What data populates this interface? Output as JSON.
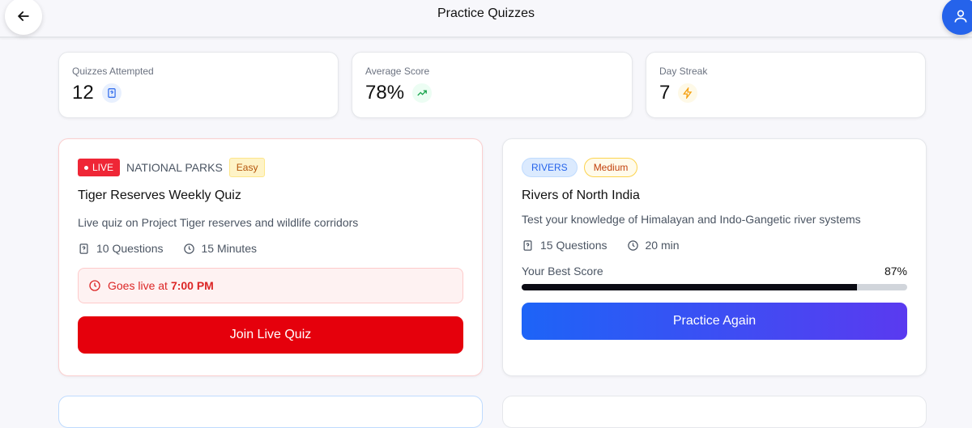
{
  "header": {
    "title": "Practice Quizzes"
  },
  "stats": [
    {
      "label": "Quizzes Attempted",
      "value": "12",
      "icon": "question-file-icon",
      "color": "#2563eb"
    },
    {
      "label": "Average Score",
      "value": "78%",
      "icon": "trending-up-icon",
      "color": "#16a34a"
    },
    {
      "label": "Day Streak",
      "value": "7",
      "icon": "lightning-icon",
      "color": "#f59e0b"
    }
  ],
  "quizzes": [
    {
      "live_label": "LIVE",
      "category": "NATIONAL PARKS",
      "difficulty": "Easy",
      "title": "Tiger Reserves Weekly Quiz",
      "description": "Live quiz on Project Tiger reserves and wildlife corridors",
      "questions": "10 Questions",
      "duration": "15 Minutes",
      "notice_prefix": "Goes live at",
      "notice_time": "7:00 PM",
      "button": "Join Live Quiz",
      "accent": "#e5000c"
    },
    {
      "category": "RIVERS",
      "difficulty": "Medium",
      "title": "Rivers of North India",
      "description": "Test your knowledge of Himalayan and Indo-Gangetic river systems",
      "questions": "15 Questions",
      "duration": "20 min",
      "best_score_label": "Your Best Score",
      "best_score": "87%",
      "best_score_value": 87,
      "button": "Practice Again",
      "accent": "#2563eb"
    }
  ]
}
